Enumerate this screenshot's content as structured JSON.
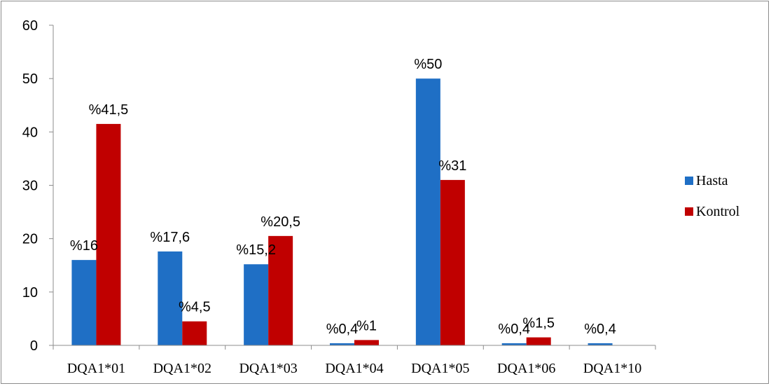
{
  "chart_data": {
    "type": "bar",
    "categories": [
      "DQA1*01",
      "DQA1*02",
      "DQA1*03",
      "DQA1*04",
      "DQA1*05",
      "DQA1*06",
      "DQA1*10"
    ],
    "series": [
      {
        "name": "Hasta",
        "color": "#1f6fc5",
        "values": [
          16,
          17.6,
          15.2,
          0.4,
          50,
          0.4,
          0.4
        ],
        "labels": [
          "%16",
          "%17,6",
          "%15,2",
          "%0,4",
          "%50",
          "%0,4",
          "%0,4"
        ]
      },
      {
        "name": "Kontrol",
        "color": "#c00000",
        "values": [
          41.5,
          4.5,
          20.5,
          1,
          31,
          1.5,
          0
        ],
        "labels": [
          "%41,5",
          "%4,5",
          "%20,5",
          "%1",
          "%31",
          "%1,5",
          ""
        ]
      }
    ],
    "y_ticks": [
      "0",
      "10",
      "20",
      "30",
      "40",
      "50",
      "60"
    ],
    "ylim": [
      0,
      60
    ],
    "grid": false,
    "legend_position": "right"
  }
}
